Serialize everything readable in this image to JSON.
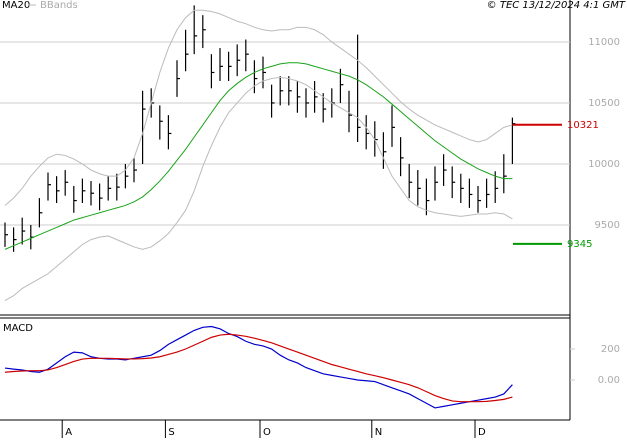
{
  "chart_data": [
    {
      "type": "ohlc",
      "credit": "© TEC 13/12/2024 4:1 GMT",
      "categories": [
        null,
        null,
        null,
        null,
        null,
        null,
        null,
        "A",
        null,
        null,
        null,
        null,
        null,
        null,
        null,
        null,
        null,
        null,
        null,
        "S",
        null,
        null,
        null,
        null,
        null,
        null,
        null,
        null,
        null,
        null,
        "O",
        null,
        null,
        null,
        null,
        null,
        null,
        null,
        null,
        null,
        null,
        null,
        null,
        "N",
        null,
        null,
        null,
        null,
        null,
        null,
        null,
        null,
        null,
        null,
        null,
        "D",
        null,
        null,
        null,
        null
      ],
      "high": [
        9520,
        9480,
        9560,
        9500,
        9720,
        9930,
        9900,
        9950,
        9820,
        9880,
        9860,
        9840,
        9900,
        9920,
        10000,
        10050,
        10600,
        10620,
        10480,
        10400,
        10850,
        11100,
        11300,
        11220,
        10900,
        10950,
        10920,
        10980,
        11020,
        10850,
        10880,
        10650,
        10720,
        10720,
        10680,
        10620,
        10680,
        10580,
        10620,
        10780,
        10600,
        11060,
        10400,
        10350,
        10260,
        10480,
        10220,
        10000,
        9950,
        9880,
        9980,
        10080,
        9980,
        9920,
        9880,
        9820,
        9880,
        9940,
        10080,
        10380
      ],
      "low": [
        9320,
        9280,
        9340,
        9300,
        9480,
        9700,
        9680,
        9740,
        9600,
        9680,
        9660,
        9620,
        9700,
        9700,
        9800,
        9850,
        10000,
        10380,
        10200,
        10120,
        10550,
        10760,
        10900,
        10950,
        10620,
        10680,
        10680,
        10720,
        10760,
        10580,
        10620,
        10380,
        10480,
        10480,
        10420,
        10380,
        10420,
        10340,
        10380,
        10500,
        10260,
        10180,
        10120,
        10060,
        9960,
        10140,
        9900,
        9720,
        9660,
        9580,
        9700,
        9820,
        9720,
        9680,
        9640,
        9600,
        9640,
        9680,
        9760,
        10000
      ],
      "close": [
        9420,
        9380,
        9450,
        9400,
        9600,
        9830,
        9780,
        9850,
        9700,
        9780,
        9760,
        9720,
        9800,
        9810,
        9900,
        9950,
        10450,
        10500,
        10350,
        10250,
        10700,
        10900,
        11050,
        11100,
        10750,
        10800,
        10800,
        10850,
        10900,
        10700,
        10750,
        10500,
        10600,
        10600,
        10550,
        10500,
        10550,
        10450,
        10500,
        10650,
        10400,
        10300,
        10250,
        10200,
        10100,
        10300,
        10050,
        9850,
        9800,
        9700,
        9850,
        9950,
        9850,
        9800,
        9750,
        9700,
        9750,
        9800,
        9900,
        10330
      ],
      "color": "#000000",
      "series": [
        {
          "name": "MA20",
          "color": "#19a319",
          "values": [
            9300,
            9330,
            9360,
            9390,
            9420,
            9450,
            9480,
            9510,
            9540,
            9560,
            9580,
            9600,
            9620,
            9640,
            9660,
            9690,
            9730,
            9790,
            9860,
            9940,
            10030,
            10120,
            10220,
            10320,
            10420,
            10520,
            10600,
            10660,
            10710,
            10750,
            10780,
            10800,
            10820,
            10830,
            10830,
            10820,
            10800,
            10780,
            10760,
            10740,
            10720,
            10690,
            10650,
            10600,
            10550,
            10490,
            10430,
            10370,
            10310,
            10250,
            10190,
            10140,
            10090,
            10040,
            10000,
            9960,
            9930,
            9900,
            9880,
            9880
          ]
        },
        {
          "name": "BBands",
          "color": "#bbbbbb",
          "values": [
            9660,
            9720,
            9800,
            9900,
            9980,
            10050,
            10080,
            10070,
            10040,
            10000,
            9950,
            9920,
            9900,
            9900,
            9950,
            10050,
            10250,
            10500,
            10750,
            10950,
            11100,
            11200,
            11260,
            11260,
            11250,
            11230,
            11200,
            11170,
            11150,
            11120,
            11100,
            11090,
            11100,
            11100,
            11120,
            11120,
            11100,
            11060,
            11000,
            10950,
            10900,
            10850,
            10790,
            10720,
            10650,
            10580,
            10510,
            10450,
            10400,
            10360,
            10320,
            10290,
            10260,
            10230,
            10200,
            10180,
            10200,
            10250,
            10300,
            10320
          ],
          "lower": [
            8880,
            8920,
            8980,
            9020,
            9060,
            9100,
            9160,
            9220,
            9280,
            9340,
            9380,
            9400,
            9410,
            9380,
            9350,
            9320,
            9300,
            9320,
            9370,
            9430,
            9520,
            9620,
            9780,
            9980,
            10150,
            10300,
            10420,
            10500,
            10580,
            10640,
            10680,
            10700,
            10710,
            10700,
            10680,
            10650,
            10600,
            10550,
            10500,
            10460,
            10420,
            10380,
            10300,
            10200,
            10050,
            9900,
            9800,
            9700,
            9650,
            9620,
            9600,
            9590,
            9580,
            9570,
            9580,
            9590,
            9590,
            9600,
            9590,
            9550
          ]
        }
      ],
      "levels": [
        {
          "value": 10321,
          "color": "#cc0000"
        },
        {
          "value": 9345,
          "color": "#009900"
        }
      ],
      "ylim": [
        8762,
        11344
      ],
      "yticks": [
        9500,
        10000,
        10500,
        11000
      ],
      "grid": true
    },
    {
      "type": "line",
      "title": "MACD",
      "series": [
        {
          "color": "#0000cc",
          "values": [
            77,
            70,
            65,
            55,
            50,
            70,
            110,
            150,
            180,
            175,
            150,
            140,
            135,
            135,
            130,
            140,
            150,
            160,
            190,
            230,
            260,
            290,
            320,
            340,
            345,
            330,
            300,
            280,
            250,
            230,
            220,
            200,
            160,
            130,
            110,
            80,
            60,
            40,
            30,
            20,
            10,
            0,
            -5,
            -10,
            -30,
            -50,
            -70,
            -90,
            -120,
            -150,
            -180,
            -170,
            -160,
            -150,
            -140,
            -130,
            -120,
            -110,
            -90,
            -30
          ]
        },
        {
          "color": "#cc0000",
          "values": [
            50,
            55,
            58,
            60,
            60,
            65,
            80,
            100,
            120,
            135,
            140,
            140,
            140,
            138,
            136,
            136,
            138,
            142,
            150,
            165,
            180,
            200,
            225,
            250,
            275,
            290,
            295,
            290,
            282,
            270,
            255,
            240,
            220,
            200,
            180,
            160,
            140,
            120,
            100,
            85,
            70,
            55,
            40,
            28,
            15,
            0,
            -15,
            -30,
            -50,
            -75,
            -100,
            -120,
            -135,
            -140,
            -140,
            -140,
            -138,
            -132,
            -125,
            -110
          ]
        }
      ],
      "ylim": [
        -258,
        400
      ],
      "yticks": [
        {
          "value": 0,
          "label": "0.00"
        },
        200
      ],
      "grid": true
    }
  ]
}
